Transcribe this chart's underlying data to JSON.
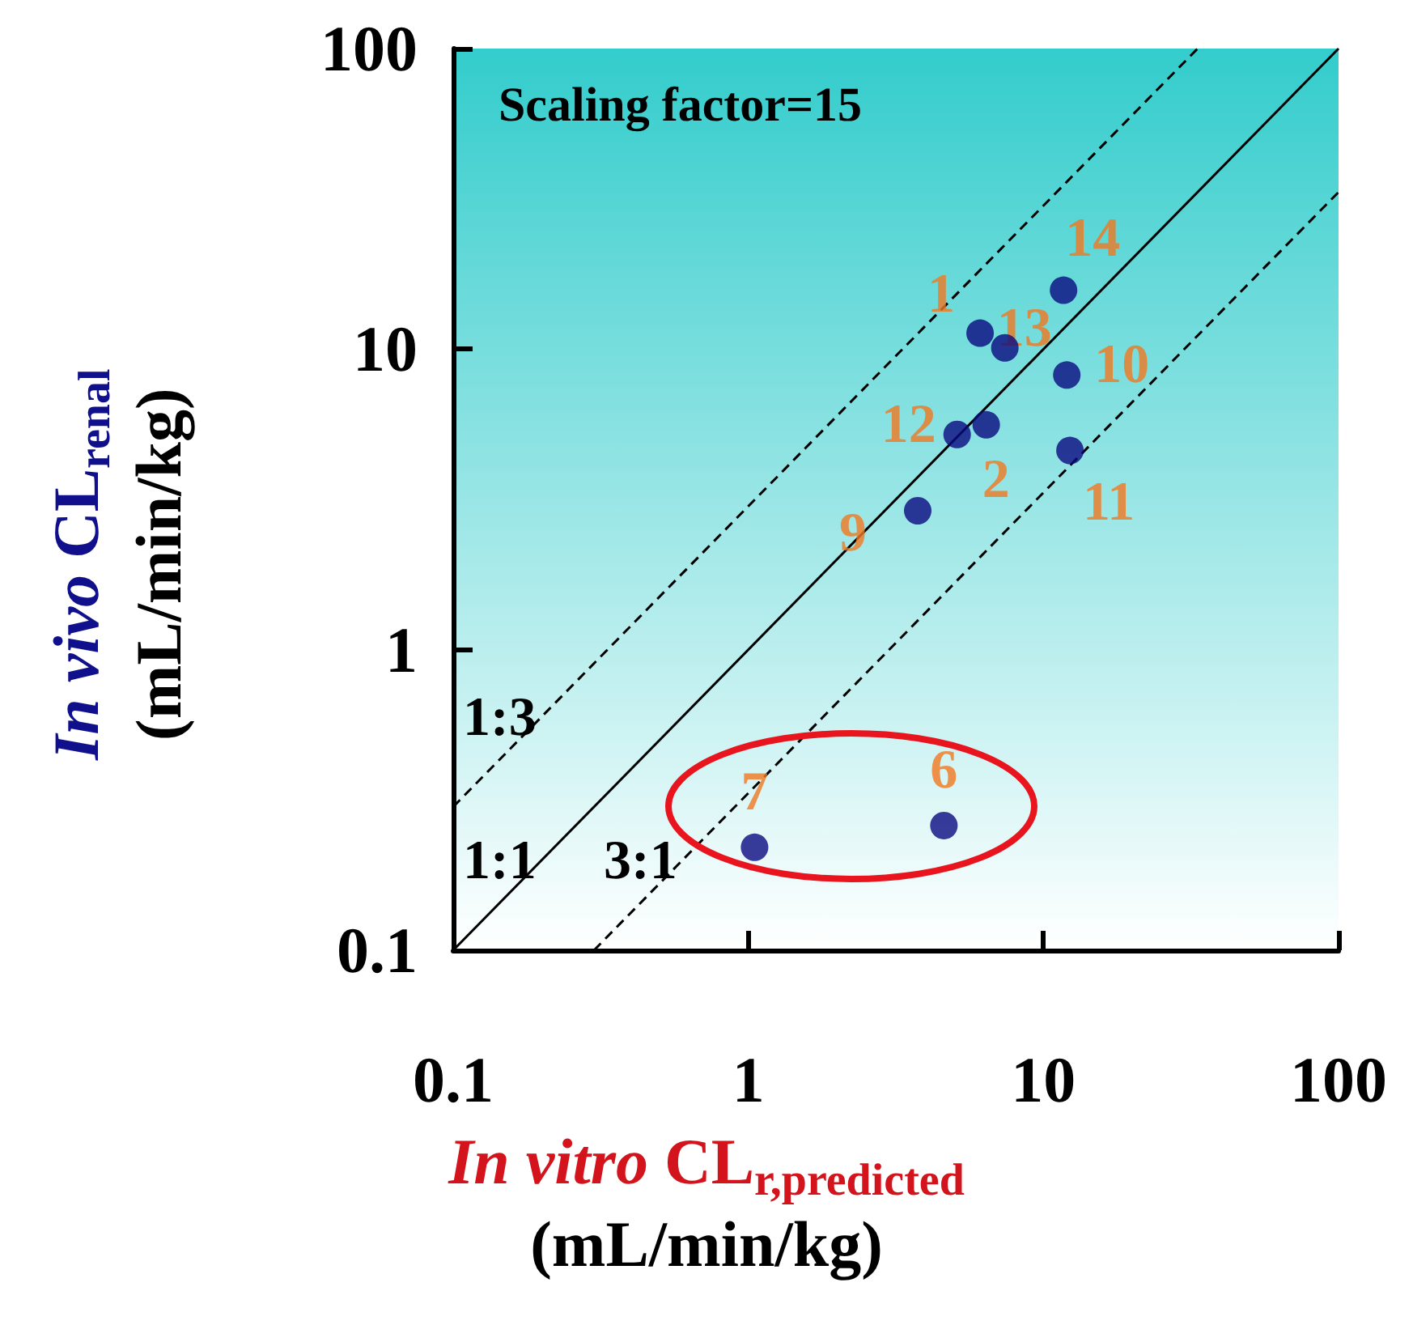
{
  "chart_data": {
    "type": "scatter",
    "log": "xy",
    "grid": false,
    "marker": "circle",
    "xlabel": "In vitro CL$_{r,predicted}$ (mL/min/kg)",
    "ylabel": "In vivo CL$_{renal}$ (mL/min/kg)",
    "xlim": [
      0.1,
      100
    ],
    "ylim": [
      0.1,
      100
    ],
    "xticks": [
      0.1,
      1,
      10,
      100
    ],
    "yticks": [
      0.1,
      1,
      10,
      100
    ],
    "series": [
      {
        "color": "#0a0a80",
        "x": [
          11.7,
          6.1,
          7.4,
          12.0,
          6.4,
          5.1,
          12.3,
          3.75,
          1.05,
          4.6
        ],
        "values": [
          15.7,
          11.3,
          10.1,
          8.2,
          5.6,
          5.2,
          4.6,
          2.9,
          0.22,
          0.26
        ]
      },
      {
        "type": "line",
        "name": "1:1",
        "color": "#000000",
        "line_style": "solid",
        "marker": "none",
        "x": [
          0.1,
          100
        ],
        "values": [
          0.1,
          100
        ]
      },
      {
        "type": "line",
        "name": "1:3",
        "color": "#000000",
        "line_style": "dashed",
        "marker": "none",
        "x": [
          0.1,
          33.3
        ],
        "values": [
          0.3,
          100
        ]
      },
      {
        "type": "line",
        "name": "3:1",
        "color": "#000000",
        "line_style": "dashed",
        "marker": "none",
        "x": [
          0.3,
          100
        ],
        "values": [
          0.1,
          33.3
        ]
      }
    ],
    "annotations": [
      "Scaling factor=15",
      {
        "text": "14",
        "x": 11.7,
        "y": 15.7
      },
      {
        "text": "1",
        "x": 6.1,
        "y": 11.3
      },
      {
        "text": "13",
        "x": 7.4,
        "y": 10.1
      },
      {
        "text": "10",
        "x": 12.0,
        "y": 8.2
      },
      {
        "text": "2",
        "x": 6.4,
        "y": 5.6
      },
      {
        "text": "12",
        "x": 5.1,
        "y": 5.2
      },
      {
        "text": "11",
        "x": 12.3,
        "y": 4.6
      },
      {
        "text": "9",
        "x": 3.75,
        "y": 2.9
      },
      {
        "text": "7",
        "x": 1.05,
        "y": 0.22
      },
      {
        "text": "6",
        "x": 4.6,
        "y": 0.26
      }
    ]
  }
}
